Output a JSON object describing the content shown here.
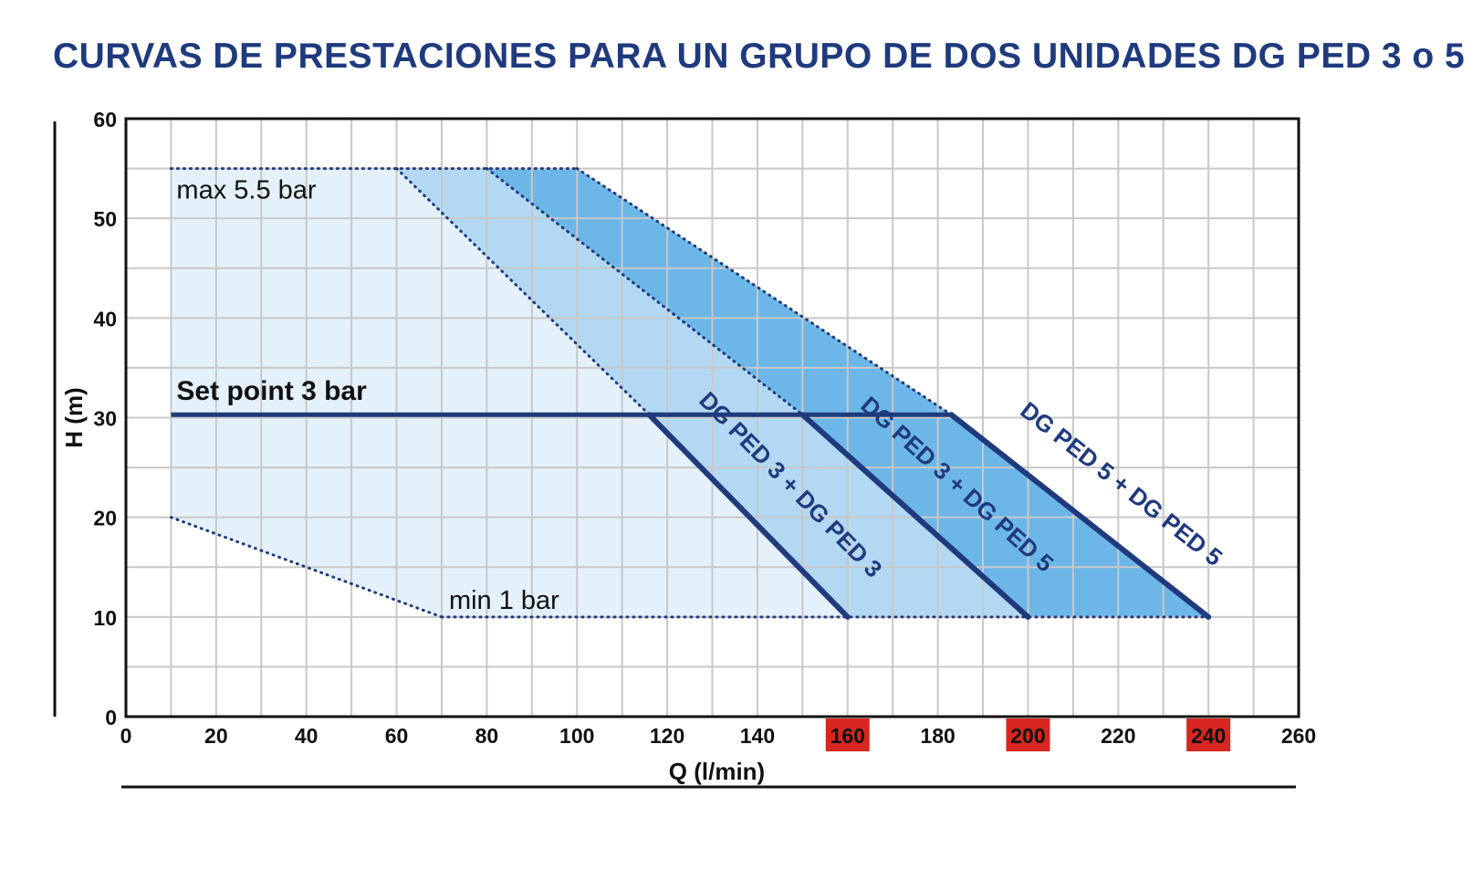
{
  "title": "CURVAS DE PRESTACIONES PARA UN GRUPO DE DOS UNIDADES DG PED 3 o 5",
  "chart_data": {
    "type": "area",
    "xlabel": "Q (l/min)",
    "ylabel": "H (m)",
    "xlim": [
      0,
      260
    ],
    "ylim": [
      0,
      60
    ],
    "x_ticks": [
      "0",
      "20",
      "40",
      "60",
      "80",
      "100",
      "120",
      "140",
      "160",
      "180",
      "200",
      "220",
      "240",
      "260"
    ],
    "y_ticks": [
      "0",
      "10",
      "20",
      "30",
      "40",
      "50",
      "60"
    ],
    "highlighted_x_ticks": [
      "160",
      "200",
      "240"
    ],
    "grid": true,
    "colors": {
      "title": "#1f3a7d",
      "curve_line": "#1f3a7d",
      "highlight_tick_bg": "#d6261f",
      "region_light": "#e4f1fb",
      "region_medium": "#b3d8f3",
      "region_dark": "#6db7e8"
    },
    "annotations": {
      "max_pressure": "max 5.5 bar",
      "min_pressure": "min 1 bar",
      "set_point": "Set point 3 bar"
    },
    "set_point_h": 30.3,
    "max_h": 55,
    "min_h": 10,
    "envelope": {
      "x": [
        10,
        10,
        70
      ],
      "y": [
        55,
        20,
        10
      ]
    },
    "series": [
      {
        "name": "DG PED 3 + DG PED 3",
        "x": [
          60,
          116,
          160
        ],
        "y": [
          55,
          30.3,
          10
        ]
      },
      {
        "name": "DG PED 3 + DG PED 5",
        "x": [
          80,
          150,
          200
        ],
        "y": [
          55,
          30.3,
          10
        ]
      },
      {
        "name": "DG PED 5 + DG PED 5",
        "x": [
          100,
          183,
          240
        ],
        "y": [
          55,
          30.3,
          10
        ]
      }
    ]
  }
}
